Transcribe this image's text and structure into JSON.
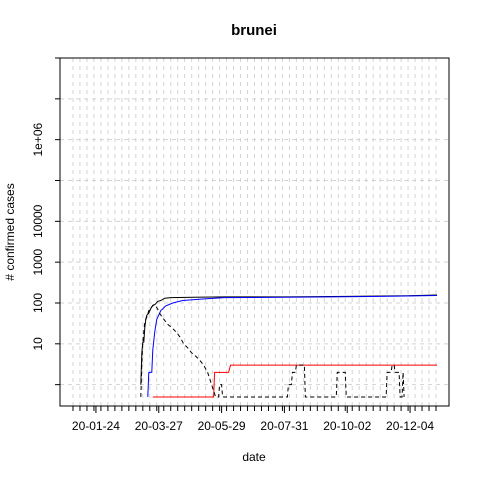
{
  "chart_data": {
    "type": "line",
    "title": "brunei",
    "xlabel": "date",
    "ylabel": "# confirmed cases",
    "x_start": "2020-01-01",
    "x_end": "2020-12-31",
    "x_ticks": [
      "20-01-24",
      "20-03-27",
      "20-05-29",
      "20-07-31",
      "20-10-02",
      "20-12-04"
    ],
    "y_scale": "log",
    "ylim": [
      0.3,
      100000000
    ],
    "y_ticks": [
      10,
      100,
      1000,
      10000,
      1000000
    ],
    "y_tick_labels": [
      "10",
      "100",
      "1000",
      "10000",
      "1e+06"
    ],
    "grid": true,
    "series": [
      {
        "color": "#000000",
        "style": "solid",
        "points": [
          [
            "2020-03-09",
            1
          ],
          [
            "2020-03-10",
            6
          ],
          [
            "2020-03-11",
            11
          ],
          [
            "2020-03-12",
            11
          ],
          [
            "2020-03-13",
            25
          ],
          [
            "2020-03-14",
            40
          ],
          [
            "2020-03-15",
            50
          ],
          [
            "2020-03-17",
            56
          ],
          [
            "2020-03-19",
            73
          ],
          [
            "2020-03-21",
            88
          ],
          [
            "2020-03-23",
            91
          ],
          [
            "2020-03-26",
            109
          ],
          [
            "2020-03-29",
            115
          ],
          [
            "2020-04-02",
            131
          ],
          [
            "2020-04-08",
            135
          ],
          [
            "2020-04-15",
            136
          ],
          [
            "2020-05-01",
            138
          ],
          [
            "2020-06-01",
            141
          ],
          [
            "2020-08-01",
            141
          ],
          [
            "2020-10-01",
            145
          ],
          [
            "2020-12-01",
            150
          ],
          [
            "2020-12-31",
            157
          ]
        ]
      },
      {
        "color": "#0000ff",
        "style": "solid",
        "points": [
          [
            "2020-03-16",
            0.5
          ],
          [
            "2020-03-17",
            2
          ],
          [
            "2020-03-20",
            2
          ],
          [
            "2020-03-21",
            7
          ],
          [
            "2020-03-23",
            20
          ],
          [
            "2020-03-25",
            40
          ],
          [
            "2020-03-29",
            65
          ],
          [
            "2020-04-03",
            85
          ],
          [
            "2020-04-10",
            100
          ],
          [
            "2020-04-20",
            115
          ],
          [
            "2020-05-10",
            125
          ],
          [
            "2020-06-01",
            135
          ],
          [
            "2020-08-01",
            138
          ],
          [
            "2020-10-01",
            142
          ],
          [
            "2020-12-01",
            148
          ],
          [
            "2020-12-31",
            153
          ]
        ]
      },
      {
        "color": "#ff0000",
        "style": "solid",
        "points": [
          [
            "2020-03-21",
            0.5
          ],
          [
            "2020-05-21",
            0.5
          ],
          [
            "2020-05-22",
            2
          ],
          [
            "2020-06-05",
            2
          ],
          [
            "2020-06-07",
            3
          ],
          [
            "2020-12-31",
            3
          ]
        ]
      },
      {
        "color": "#000000",
        "style": "dashed",
        "points": [
          [
            "2020-03-09",
            0.5
          ],
          [
            "2020-03-10",
            3
          ],
          [
            "2020-03-11",
            11
          ],
          [
            "2020-03-13",
            35
          ],
          [
            "2020-03-15",
            45
          ],
          [
            "2020-03-17",
            65
          ],
          [
            "2020-03-20",
            80
          ],
          [
            "2020-03-22",
            90
          ],
          [
            "2020-03-24",
            85
          ],
          [
            "2020-03-26",
            70
          ],
          [
            "2020-03-28",
            55
          ],
          [
            "2020-04-01",
            40
          ],
          [
            "2020-04-05",
            30
          ],
          [
            "2020-04-09",
            25
          ],
          [
            "2020-04-13",
            20
          ],
          [
            "2020-04-17",
            15
          ],
          [
            "2020-04-21",
            10
          ],
          [
            "2020-04-25",
            8
          ],
          [
            "2020-04-29",
            6
          ],
          [
            "2020-05-03",
            5
          ],
          [
            "2020-05-07",
            4
          ],
          [
            "2020-05-11",
            3
          ],
          [
            "2020-05-15",
            2
          ],
          [
            "2020-05-19",
            1
          ],
          [
            "2020-05-23",
            0.5
          ],
          [
            "2020-05-26",
            0.5
          ],
          [
            "2020-05-27",
            1
          ],
          [
            "2020-05-29",
            1
          ],
          [
            "2020-05-30",
            0.5
          ],
          [
            "2020-07-27",
            0.5
          ],
          [
            "2020-08-03",
            0.5
          ],
          [
            "2020-08-04",
            1
          ],
          [
            "2020-08-07",
            1
          ],
          [
            "2020-08-08",
            2
          ],
          [
            "2020-08-11",
            2
          ],
          [
            "2020-08-12",
            3
          ],
          [
            "2020-08-20",
            3
          ],
          [
            "2020-08-21",
            0.5
          ],
          [
            "2020-09-21",
            0.5
          ],
          [
            "2020-09-22",
            2
          ],
          [
            "2020-09-30",
            2
          ],
          [
            "2020-10-01",
            0.5
          ],
          [
            "2020-11-10",
            0.5
          ],
          [
            "2020-11-11",
            2
          ],
          [
            "2020-11-15",
            2
          ],
          [
            "2020-11-16",
            3
          ],
          [
            "2020-11-18",
            3
          ],
          [
            "2020-11-19",
            2
          ],
          [
            "2020-11-23",
            2
          ],
          [
            "2020-11-24",
            0.5
          ],
          [
            "2020-11-26",
            0.5
          ],
          [
            "2020-11-27",
            2
          ],
          [
            "2020-11-28",
            0.5
          ]
        ]
      }
    ]
  }
}
